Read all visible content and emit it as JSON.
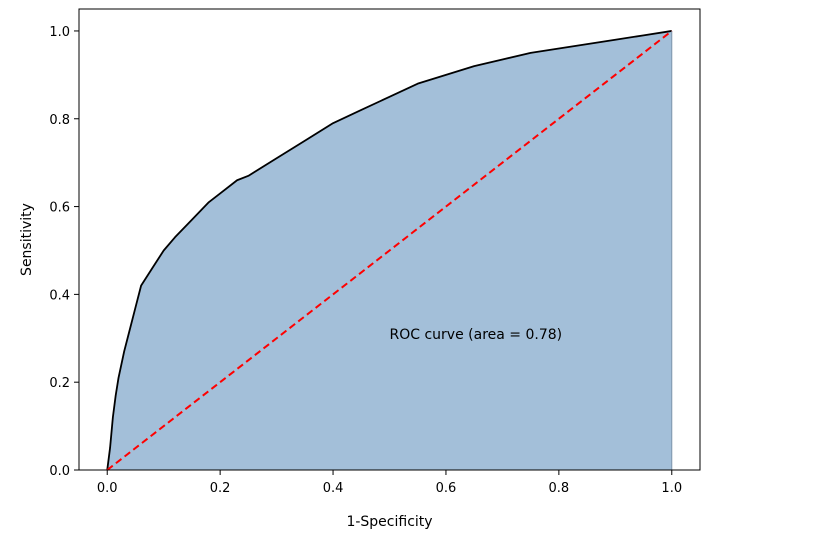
{
  "chart_data": {
    "type": "area",
    "title": "",
    "xlabel": "1-Specificity",
    "ylabel": "Sensitivity",
    "xlim": [
      -0.05,
      1.05
    ],
    "ylim": [
      0.0,
      1.05
    ],
    "xticks": [
      "0.0",
      "0.2",
      "0.4",
      "0.6",
      "0.8",
      "1.0"
    ],
    "yticks": [
      "0.0",
      "0.2",
      "0.4",
      "0.6",
      "0.8",
      "1.0"
    ],
    "grid": false,
    "annotation": {
      "text": "ROC curve (area = 0.78)",
      "x": 0.5,
      "y": 0.31
    },
    "series": [
      {
        "type": "area",
        "color": "#a3bfd9",
        "line_color": "#000000",
        "x": [
          0.0,
          0.005,
          0.01,
          0.015,
          0.02,
          0.03,
          0.04,
          0.05,
          0.06,
          0.08,
          0.1,
          0.12,
          0.15,
          0.18,
          0.2,
          0.23,
          0.25,
          0.3,
          0.35,
          0.4,
          0.45,
          0.5,
          0.55,
          0.6,
          0.65,
          0.7,
          0.75,
          0.8,
          0.85,
          0.9,
          0.95,
          1.0
        ],
        "y": [
          0.0,
          0.05,
          0.12,
          0.17,
          0.21,
          0.27,
          0.32,
          0.37,
          0.42,
          0.46,
          0.5,
          0.53,
          0.57,
          0.61,
          0.63,
          0.66,
          0.67,
          0.71,
          0.75,
          0.79,
          0.82,
          0.85,
          0.88,
          0.9,
          0.92,
          0.935,
          0.95,
          0.96,
          0.97,
          0.98,
          0.99,
          1.0
        ]
      },
      {
        "type": "line",
        "style": "dashed",
        "color": "#ff0000",
        "x": [
          0.0,
          1.0
        ],
        "y": [
          0.0,
          1.0
        ]
      }
    ]
  }
}
